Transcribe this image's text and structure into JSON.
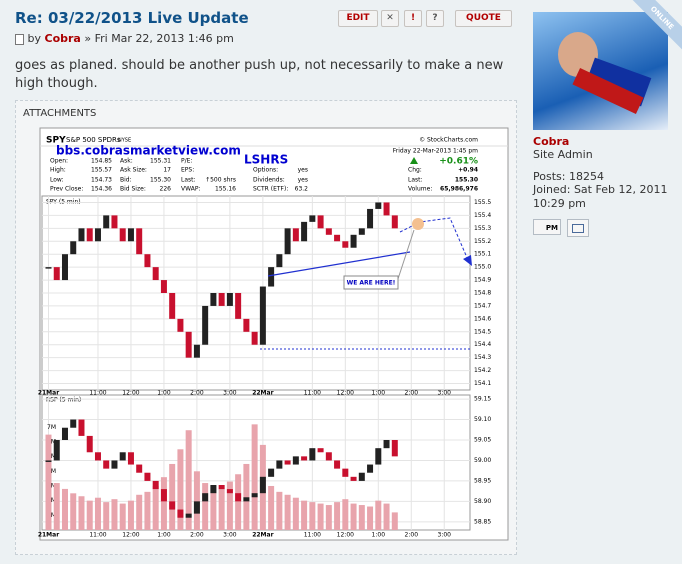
{
  "post": {
    "title": "Re: 03/22/2013 Live Update",
    "edit": "EDIT",
    "delete": "✕",
    "report": "!",
    "info": "?",
    "quote": "QUOTE",
    "by": "by",
    "author": "Cobra",
    "date": "» Fri Mar 22, 2013 1:46 pm",
    "body": "goes as planed. should be another push up, not necessarily to make a new high though.",
    "attachments": "ATTACHMENTS"
  },
  "profile": {
    "status": "ONLINE",
    "name": "Cobra",
    "rank": "Site Admin",
    "posts": "Posts: 18254",
    "joined": "Joined: Sat Feb 12, 2011 10:29 pm",
    "pm": "PM"
  },
  "chart_data": {
    "type": "candlestick",
    "title": "SPY",
    "subtitle": "S&P 500 SPDRs",
    "exchange": "NYSE",
    "source": "© StockCharts.com",
    "watermark": "bbs.cobrasmarketview.com",
    "tag": "LSHRS",
    "timestamp": "Friday 22-Mar-2013 1:45 pm",
    "change": "+0.61%",
    "quote": [
      [
        [
          "Open:",
          "154.85"
        ],
        [
          "Ask:",
          "155.31"
        ],
        [
          "P/E:"
        ]
      ],
      [
        [
          "High:",
          "155.57"
        ],
        [
          "Ask Size:",
          "17"
        ],
        [
          "EPS:"
        ],
        [
          "Options:",
          "yes"
        ],
        [
          "Chg:",
          "+0.94"
        ]
      ],
      [
        [
          "Low:",
          "154.73"
        ],
        [
          "Bid:",
          "155.30"
        ],
        [
          "Last:",
          "↑500 shrs"
        ],
        [
          "Dividends:",
          "yes"
        ],
        [
          "Last:",
          "155.30"
        ]
      ],
      [
        [
          "Prev Close:",
          "154.36"
        ],
        [
          "Bid Size:",
          "226"
        ],
        [
          "VWAP:",
          "155.16"
        ],
        [
          "SCTR (ETF):",
          "63.2"
        ],
        [
          "Volume:",
          "65,986,976"
        ]
      ]
    ],
    "panel_label": "SPY (5 min)",
    "annotation": "WE ARE HERE!",
    "xlim": [
      0,
      51
    ],
    "xticks": [
      {
        "value": 0,
        "label": "21Mar"
      },
      {
        "value": 6,
        "label": "11:00"
      },
      {
        "value": 10,
        "label": "12:00"
      },
      {
        "value": 14,
        "label": "1:00"
      },
      {
        "value": 18,
        "label": "2:00"
      },
      {
        "value": 22,
        "label": "3:00"
      },
      {
        "value": 26,
        "label": "22Mar"
      },
      {
        "value": 32,
        "label": "11:00"
      },
      {
        "value": 36,
        "label": "12:00"
      },
      {
        "value": 40,
        "label": "1:00"
      },
      {
        "value": 44,
        "label": "2:00"
      },
      {
        "value": 48,
        "label": "3:00"
      }
    ],
    "ylim": [
      154.05,
      155.55
    ],
    "yticks": [
      154.1,
      154.2,
      154.3,
      154.4,
      154.5,
      154.6,
      154.7,
      154.8,
      154.9,
      {
        "value": 155,
        "label": "155.0"
      },
      155.1,
      155.2,
      155.3,
      155.4,
      155.5
    ],
    "grid": true,
    "up_color": "#222222",
    "down_color": "#c8102e",
    "values": [
      155.0,
      154.9,
      155.1,
      155.2,
      155.3,
      155.2,
      155.3,
      155.4,
      155.3,
      155.2,
      155.3,
      155.1,
      155.0,
      154.9,
      154.8,
      154.6,
      154.5,
      154.3,
      154.4,
      154.7,
      154.8,
      154.7,
      154.8,
      154.6,
      154.5,
      154.4,
      154.85,
      155.0,
      155.1,
      155.3,
      155.2,
      155.35,
      155.4,
      155.3,
      155.25,
      155.2,
      155.15,
      155.25,
      155.3,
      155.45,
      155.5,
      155.4,
      155.3
    ],
    "rsp": {
      "label": "RSP (5 min)",
      "ylim": [
        58.83,
        59.16
      ],
      "yticks": [
        58.85,
        {
          "value": 58.9,
          "label": "58.90"
        },
        58.95,
        {
          "value": 59,
          "label": "59.00"
        },
        59.05,
        {
          "value": 59.1,
          "label": "59.10"
        },
        59.15
      ],
      "values": [
        59.0,
        59.05,
        59.08,
        59.1,
        59.06,
        59.02,
        59.0,
        58.98,
        59.0,
        59.02,
        58.99,
        58.97,
        58.95,
        58.93,
        58.9,
        58.88,
        58.86,
        58.87,
        58.9,
        58.92,
        58.94,
        58.93,
        58.92,
        58.9,
        58.91,
        58.92,
        58.96,
        58.98,
        59.0,
        58.99,
        59.01,
        59.0,
        59.03,
        59.02,
        59.0,
        58.98,
        58.96,
        58.95,
        58.97,
        58.99,
        59.03,
        59.05,
        59.01
      ]
    },
    "volume": {
      "color": "#e8a4ac",
      "ylim": [
        0,
        9200000
      ],
      "yticks": [
        {
          "value": 1000000,
          "label": "1M"
        },
        {
          "value": 2000000,
          "label": "2M"
        },
        {
          "value": 3000000,
          "label": "3M"
        },
        {
          "value": 4000000,
          "label": "4M"
        },
        {
          "value": 5000000,
          "label": "5M"
        },
        {
          "value": 6000000,
          "label": "6M"
        },
        {
          "value": 7000000,
          "label": "7M"
        }
      ],
      "values": [
        6500000,
        3200000,
        2800000,
        2500000,
        2300000,
        2000000,
        2200000,
        1900000,
        2100000,
        1800000,
        2000000,
        2400000,
        2600000,
        3000000,
        3600000,
        4500000,
        5500000,
        6800000,
        4000000,
        3200000,
        3000000,
        2800000,
        3300000,
        3800000,
        4500000,
        7200000,
        5800000,
        3000000,
        2600000,
        2400000,
        2200000,
        2000000,
        1900000,
        1800000,
        1700000,
        1900000,
        2100000,
        1800000,
        1700000,
        1600000,
        2000000,
        1800000,
        1200000
      ]
    }
  }
}
